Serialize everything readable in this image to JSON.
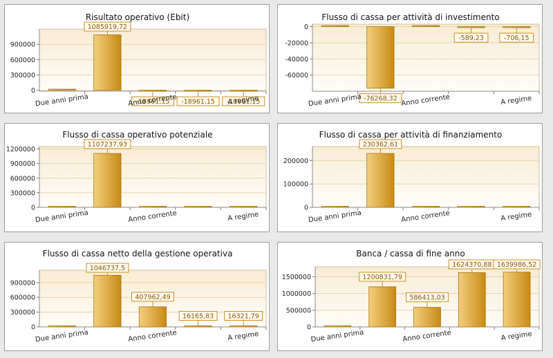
{
  "chart_data": [
    {
      "type": "bar",
      "title": "Risultato operativo (Ebit)",
      "categories": [
        "Due anni prima",
        "",
        "Anno corrente",
        "",
        "A regime"
      ],
      "values": [
        0,
        1085919.72,
        -18961.15,
        -18961.15,
        -18961.15
      ],
      "data_labels": [
        "",
        "1085919,72",
        "-18961,15",
        "-18961,15",
        "-18961,15"
      ],
      "yticks": [
        0,
        300000,
        600000,
        900000
      ],
      "ytick_labels": [
        "0",
        "300000",
        "600000",
        "900000"
      ],
      "ylim": [
        -20000,
        1200000
      ],
      "grid": true
    },
    {
      "type": "bar",
      "title": "Flusso di cassa per attività di investimento",
      "categories": [
        "Due anni prima",
        "",
        "Anno corrente",
        "",
        "A regime"
      ],
      "values": [
        0,
        -76268.32,
        0,
        -589.23,
        -706.15
      ],
      "data_labels": [
        "",
        "-76268,32",
        "",
        "-589,23",
        "-706,15"
      ],
      "yticks": [
        0,
        -20000,
        -40000,
        -60000
      ],
      "ytick_labels": [
        "0",
        "-20000",
        "-40000",
        "-60000"
      ],
      "ylim": [
        -80000,
        3000
      ],
      "grid": true
    },
    {
      "type": "bar",
      "title": "Flusso di cassa operativo potenziale",
      "categories": [
        "Due anni prima",
        "",
        "Anno corrente",
        "",
        "A regime"
      ],
      "values": [
        0,
        1107237.93,
        0,
        0,
        0
      ],
      "data_labels": [
        "",
        "1107237,93",
        "",
        "",
        ""
      ],
      "yticks": [
        0,
        300000,
        600000,
        900000,
        1200000
      ],
      "ytick_labels": [
        "0",
        "300000",
        "600000",
        "900000",
        "1200000"
      ],
      "ylim": [
        0,
        1250000
      ],
      "grid": true
    },
    {
      "type": "bar",
      "title": "Flusso di cassa per attività di finanziamento",
      "categories": [
        "Due anni prima",
        "",
        "Anno corrente",
        "",
        "A regime"
      ],
      "values": [
        0,
        230362.61,
        0,
        0,
        0
      ],
      "data_labels": [
        "",
        "230362,61",
        "",
        "",
        ""
      ],
      "yticks": [
        0,
        100000,
        200000
      ],
      "ytick_labels": [
        "0",
        "100000",
        "200000"
      ],
      "ylim": [
        0,
        260000
      ],
      "grid": true
    },
    {
      "type": "bar",
      "title": "Flusso di cassa netto della gestione operativa",
      "categories": [
        "Due anni prima",
        "",
        "Anno corrente",
        "",
        "A regime"
      ],
      "values": [
        0,
        1046737.5,
        407962.49,
        16165.83,
        16321.79
      ],
      "data_labels": [
        "",
        "1046737,5",
        "407962,49",
        "16165,83",
        "16321,79"
      ],
      "yticks": [
        0,
        300000,
        600000,
        900000
      ],
      "ytick_labels": [
        "0",
        "300000",
        "600000",
        "900000"
      ],
      "ylim": [
        0,
        1150000
      ],
      "grid": true
    },
    {
      "type": "bar",
      "title": "Banca / cassa di fine anno",
      "categories": [
        "Due anni prima",
        "",
        "Anno corrente",
        "",
        "A regime"
      ],
      "values": [
        0,
        1200831.79,
        586413.03,
        1624370.88,
        1639986.52
      ],
      "data_labels": [
        "",
        "1200831,79",
        "586413,03",
        "1624370,88",
        "1639986,52"
      ],
      "yticks": [
        0,
        500000,
        1000000,
        1500000
      ],
      "ytick_labels": [
        "0",
        "500000",
        "1000000",
        "1500000"
      ],
      "ylim": [
        0,
        1800000
      ],
      "grid": true
    }
  ],
  "colors": {
    "bar_light": "#f3cf7e",
    "bar_dark": "#c98a14",
    "bar_border": "#a7720f",
    "plot_top": "#f8ecd4",
    "plot_bottom": "#fffdf8",
    "label_border": "#c99020",
    "label_text": "#8a5a00"
  }
}
